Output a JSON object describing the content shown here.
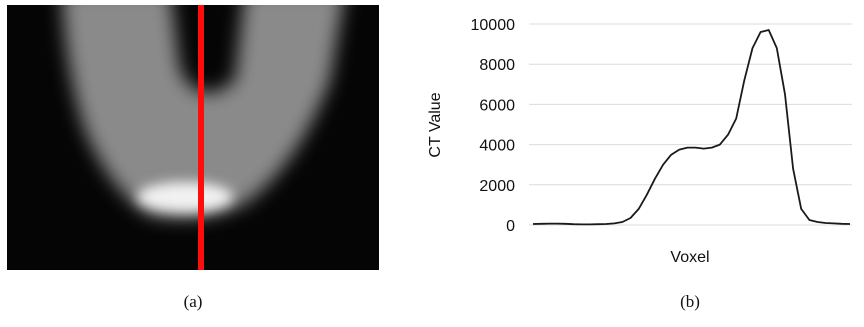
{
  "captions": [
    "(a)",
    "(b)"
  ],
  "chart_data": {
    "type": "line",
    "ylabel": "CT Value",
    "xlabel": "Voxel",
    "categories": [
      null,
      null,
      null,
      null,
      null,
      null,
      null,
      null,
      null,
      null,
      null,
      null,
      null,
      null,
      null,
      null,
      null,
      null,
      null,
      null,
      null,
      null,
      null,
      null,
      null,
      null,
      null,
      null,
      null,
      null,
      null,
      null,
      null,
      null,
      null,
      null,
      null,
      null,
      null,
      null
    ],
    "series": [
      {
        "color": "#1a1a1a",
        "values": [
          50,
          60,
          70,
          70,
          60,
          40,
          30,
          30,
          40,
          50,
          80,
          150,
          350,
          800,
          1500,
          2300,
          3000,
          3500,
          3750,
          3850,
          3850,
          3800,
          3850,
          4000,
          4500,
          5300,
          7200,
          8800,
          9600,
          9700,
          8800,
          6500,
          2800,
          800,
          250,
          150,
          100,
          80,
          60,
          50
        ]
      }
    ],
    "ylim": [
      0,
      10000
    ],
    "yticks": [
      0,
      2000,
      4000,
      6000,
      8000,
      10000
    ],
    "grid": true
  }
}
